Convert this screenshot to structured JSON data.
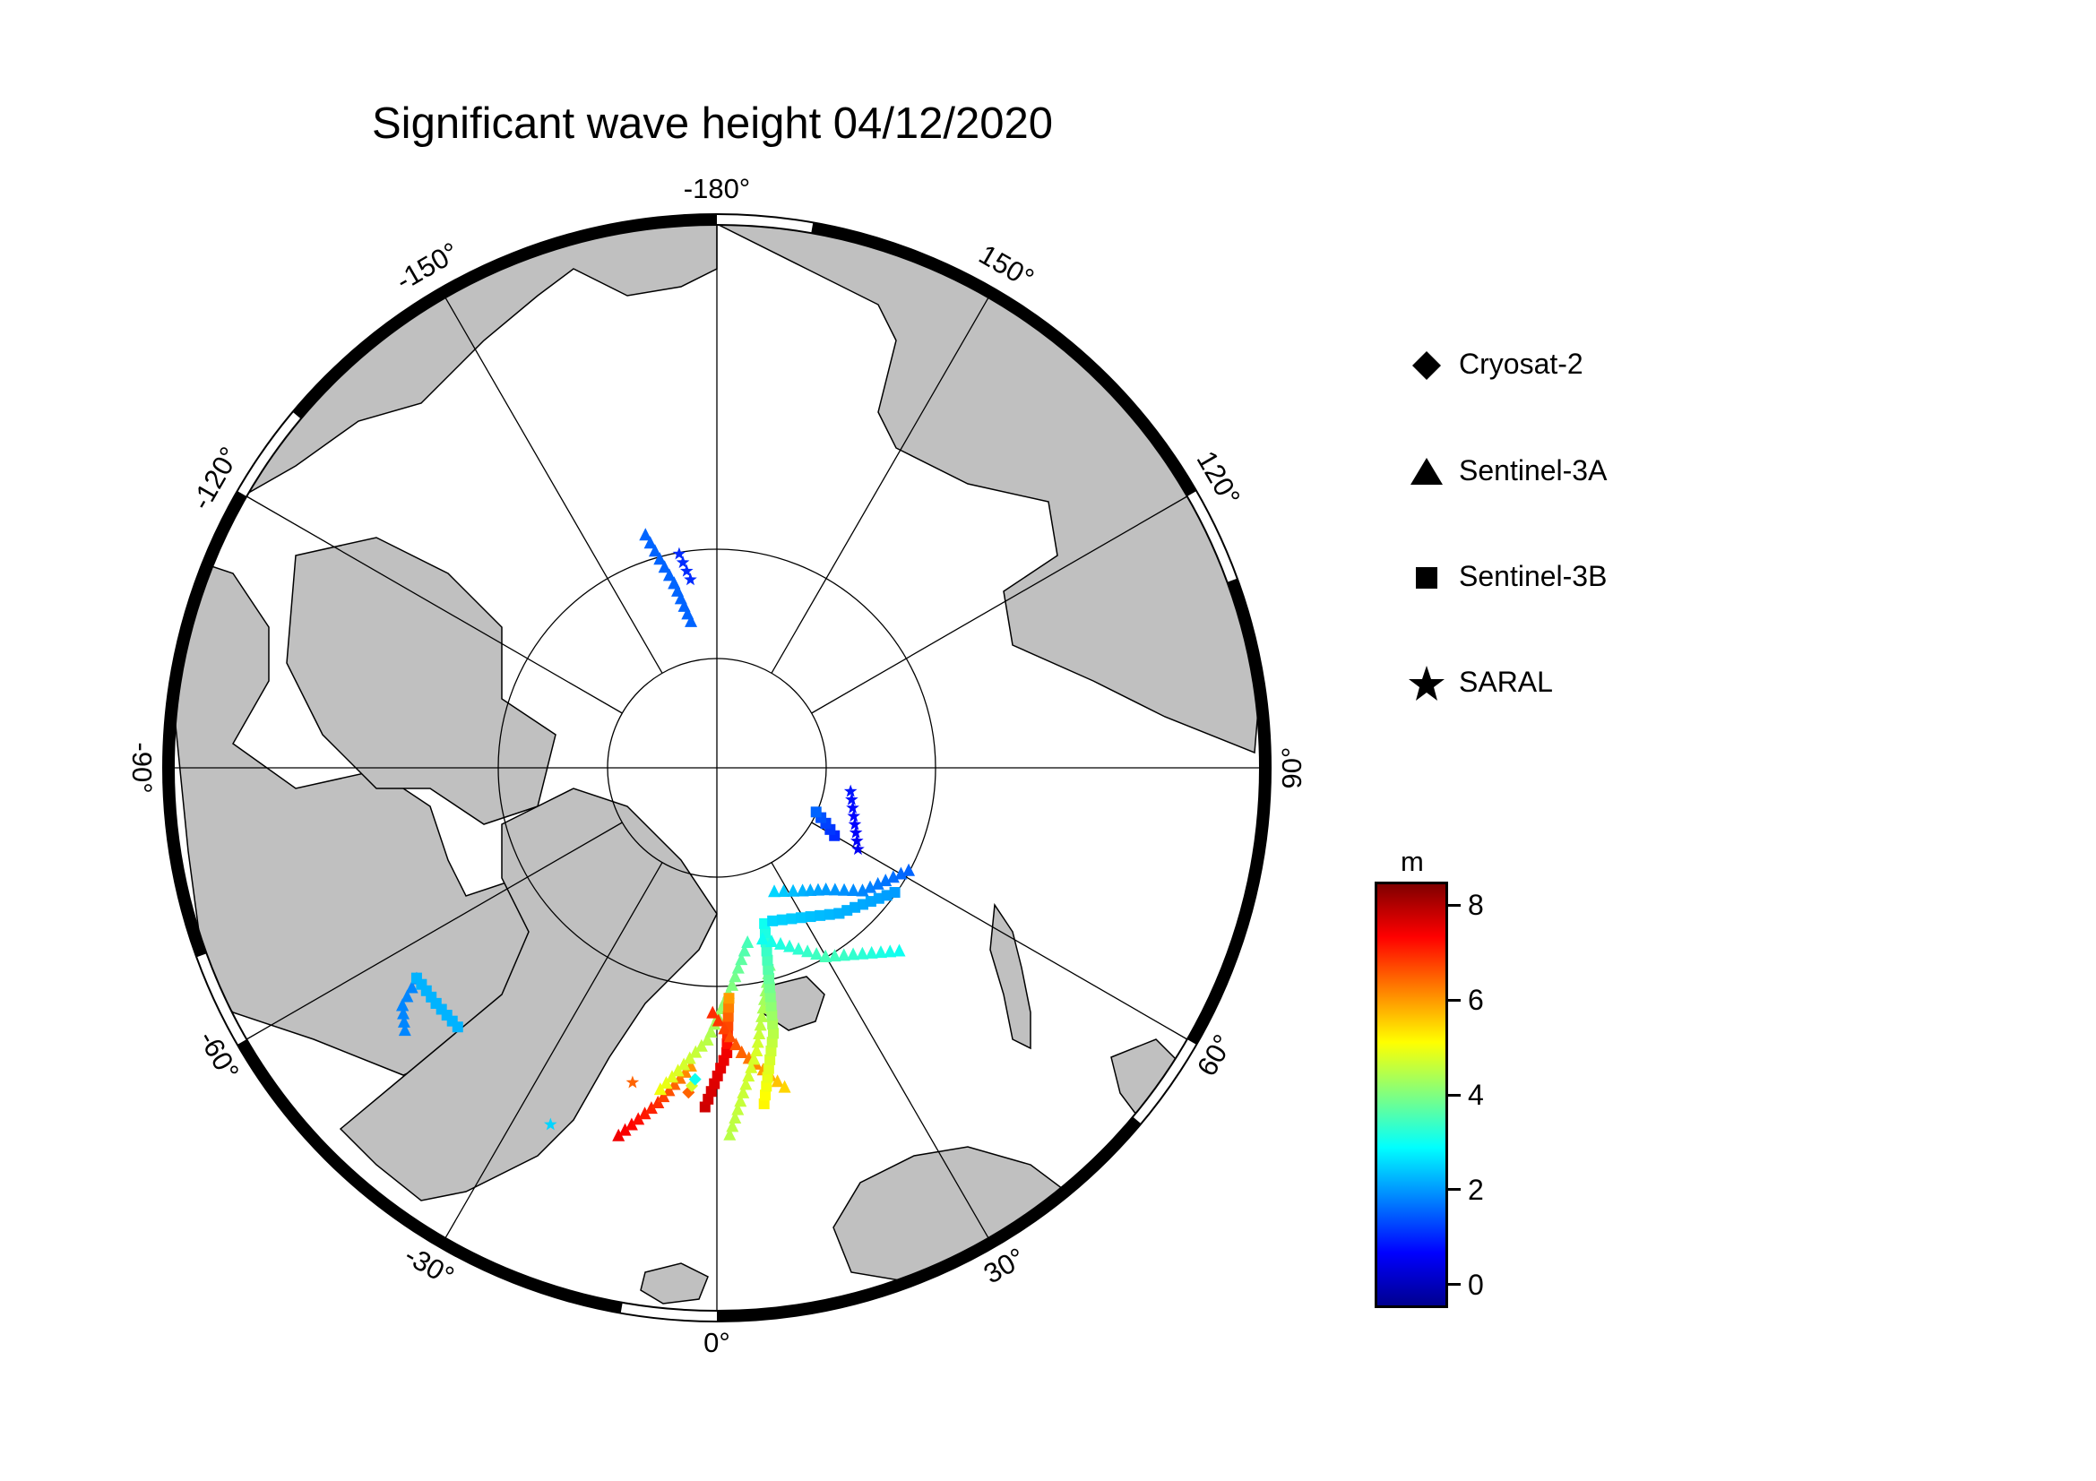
{
  "title": "Significant wave height 04/12/2020",
  "map": {
    "projection": "north polar stereographic",
    "longitude_labels": [
      "-180°",
      "150°",
      "120°",
      "90°",
      "60°",
      "30°",
      "0°",
      "-30°",
      "-60°",
      "-90°",
      "-120°",
      "-150°"
    ],
    "colors": {
      "land": "#c0c0c0",
      "ocean_ice": "#ffffff",
      "coast": "#000000",
      "grid": "#000000"
    }
  },
  "legend": [
    {
      "symbol": "diamond-icon",
      "label": "Cryosat-2"
    },
    {
      "symbol": "triangle-icon",
      "label": "Sentinel-3A"
    },
    {
      "symbol": "square-icon",
      "label": "Sentinel-3B"
    },
    {
      "symbol": "star-icon",
      "label": "SARAL"
    }
  ],
  "colorbar": {
    "unit": "m",
    "range": [
      -0.5,
      8.5
    ],
    "ticks": [
      {
        "value": 8,
        "label": "8"
      },
      {
        "value": 6,
        "label": "6"
      },
      {
        "value": 4,
        "label": "4"
      },
      {
        "value": 2,
        "label": "2"
      },
      {
        "value": 0,
        "label": "0"
      }
    ],
    "colormap": [
      "#00008f",
      "#0000ff",
      "#0080ff",
      "#00ffff",
      "#80ff80",
      "#ffff00",
      "#ff8000",
      "#ff0000",
      "#800000"
    ]
  },
  "chart_data": {
    "type": "scatter",
    "variable": "Significant wave height",
    "unit": "m",
    "tracks": [
      {
        "satellite": "Sentinel-3A",
        "lon": [
          -163,
          -167,
          -170
        ],
        "lat": [
          72,
          76,
          79
        ],
        "swh": [
          1.5,
          1.5,
          1.5
        ]
      },
      {
        "satellite": "SARAL",
        "lon": [
          -170,
          -172
        ],
        "lat": [
          74,
          76
        ],
        "swh": [
          1.0,
          1.0
        ]
      },
      {
        "satellite": "Sentinel-3A",
        "lon": [
          -50,
          -53,
          -55
        ],
        "lat": [
          60,
          61,
          63
        ],
        "swh": [
          1.8,
          1.8,
          1.8
        ]
      },
      {
        "satellite": "Sentinel-3B",
        "lon": [
          -55,
          -50,
          -45
        ],
        "lat": [
          63,
          63,
          63
        ],
        "swh": [
          2.2,
          2.2,
          2.2
        ]
      },
      {
        "satellite": "Sentinel-3A",
        "lon": [
          -15,
          -10,
          -5
        ],
        "lat": [
          62,
          65,
          68
        ],
        "swh": [
          7.5,
          7.0,
          6.0
        ]
      },
      {
        "satellite": "Sentinel-3A",
        "lon": [
          -10,
          -2,
          4,
          10
        ],
        "lat": [
          66,
          70,
          74,
          77
        ],
        "swh": [
          5.0,
          4.5,
          4.0,
          3.5
        ]
      },
      {
        "satellite": "Sentinel-3B",
        "lon": [
          -2,
          2,
          3
        ],
        "lat": [
          65,
          69,
          73
        ],
        "swh": [
          7.8,
          7.5,
          6.0
        ]
      },
      {
        "satellite": "Sentinel-3A",
        "lon": [
          -1,
          5,
          12
        ],
        "lat": [
          72,
          69,
          66
        ],
        "swh": [
          7.0,
          6.5,
          5.5
        ]
      },
      {
        "satellite": "Sentinel-3A",
        "lon": [
          2,
          8,
          15
        ],
        "lat": [
          63,
          69,
          75
        ],
        "swh": [
          4.5,
          4.8,
          4.0
        ]
      },
      {
        "satellite": "Sentinel-3B",
        "lon": [
          8,
          12,
          17
        ],
        "lat": [
          65,
          70,
          78
        ],
        "swh": [
          5.2,
          4.5,
          3.0
        ]
      },
      {
        "satellite": "Sentinel-3A",
        "lon": [
          15,
          30,
          45
        ],
        "lat": [
          77,
          74,
          71
        ],
        "swh": [
          3.0,
          3.5,
          3.0
        ]
      },
      {
        "satellite": "Sentinel-3B",
        "lon": [
          20,
          40,
          55
        ],
        "lat": [
          78,
          76,
          74
        ],
        "swh": [
          2.5,
          2.2,
          2.0
        ]
      },
      {
        "satellite": "Sentinel-3A",
        "lon": [
          25,
          35,
          42,
          50,
          62
        ],
        "lat": [
          80,
          79,
          78,
          76,
          74
        ],
        "swh": [
          2.5,
          2.2,
          2.0,
          1.8,
          1.5
        ]
      },
      {
        "satellite": "Sentinel-3B",
        "lon": [
          60,
          63,
          66
        ],
        "lat": [
          80,
          81,
          82
        ],
        "swh": [
          1.0,
          1.2,
          1.5
        ]
      },
      {
        "satellite": "SARAL",
        "lon": [
          60,
          80
        ],
        "lat": [
          78,
          80
        ],
        "swh": [
          0.5,
          0.8
        ]
      },
      {
        "satellite": "SARAL",
        "lon": [
          -15
        ],
        "lat": [
          66
        ],
        "swh": [
          6.5
        ]
      },
      {
        "satellite": "Cryosat-2",
        "lon": [
          -5,
          -4
        ],
        "lat": [
          66,
          67
        ],
        "swh": [
          6.5,
          3.0
        ]
      },
      {
        "satellite": "SARAL",
        "lon": [
          -25
        ],
        "lat": [
          61
        ],
        "swh": [
          2.5
        ]
      }
    ]
  }
}
